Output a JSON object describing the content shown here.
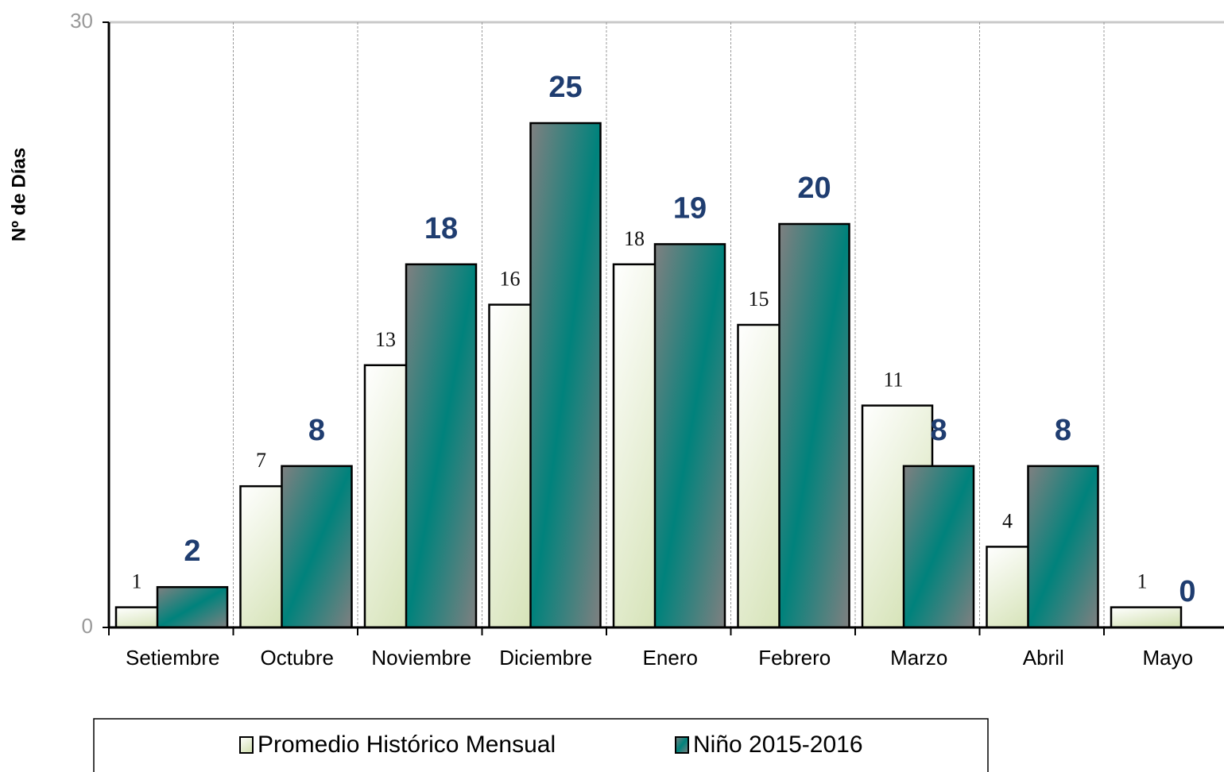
{
  "chart_data": {
    "type": "bar",
    "y_label": "Nº de Días",
    "categories": [
      "Setiembre",
      "Octubre",
      "Noviembre",
      "Diciembre",
      "Enero",
      "Febrero",
      "Marzo",
      "Abril",
      "Mayo"
    ],
    "series": [
      {
        "name": "Promedio Histórico Mensual",
        "color": "#d6e3b8",
        "values": [
          1,
          7,
          13,
          16,
          18,
          15,
          11,
          4,
          1
        ]
      },
      {
        "name": "Niño 2015-2016",
        "color": "#00827c",
        "values": [
          2,
          8,
          18,
          25,
          19,
          20,
          8,
          8,
          0
        ]
      }
    ],
    "ylim": [
      0,
      30
    ],
    "yticks": [
      0,
      30
    ],
    "legend": "bottom"
  }
}
